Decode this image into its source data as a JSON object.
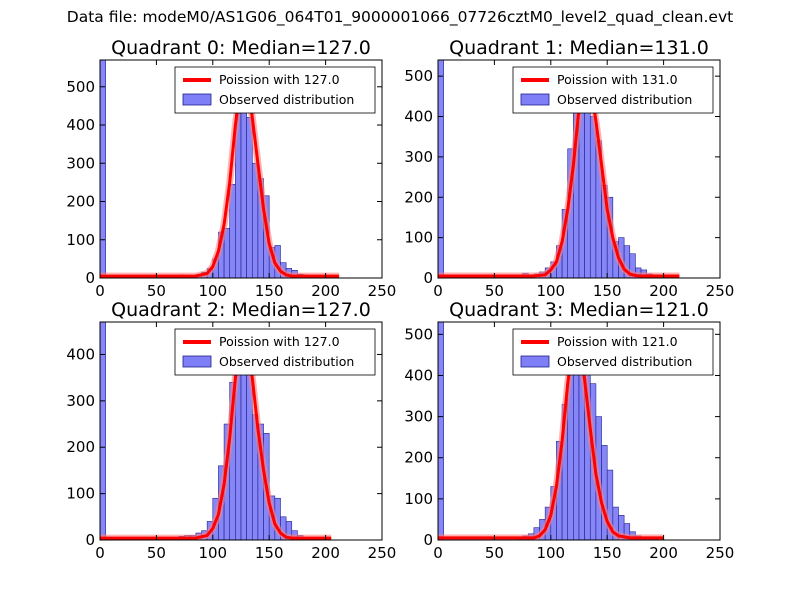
{
  "suptitle": "Data file: modeM0/AS1G06_064T01_9000001066_07726cztM0_level2_quad_clean.evt",
  "colors": {
    "hist_fill": "#7f7ff7",
    "hist_edge": "#202090",
    "poisson_line": "#ff0000",
    "poisson_glow": "#ff8080"
  },
  "chart_data": [
    {
      "type": "bar+line",
      "title": "Quadrant 0: Median=127.0",
      "xlim": [
        0,
        250
      ],
      "ylim": [
        0,
        570
      ],
      "xticks": [
        0,
        50,
        100,
        150,
        200,
        250
      ],
      "yticks": [
        0,
        100,
        200,
        300,
        400,
        500
      ],
      "legend": {
        "placement": "top-right",
        "line_label": "Poission with 127.0",
        "bar_label": "Observed distribution"
      },
      "median": 127.0,
      "bin_width": 5,
      "bins": [
        0,
        5,
        10,
        15,
        20,
        25,
        30,
        35,
        40,
        45,
        50,
        55,
        60,
        65,
        70,
        75,
        80,
        85,
        90,
        95,
        100,
        105,
        110,
        115,
        120,
        125,
        130,
        135,
        140,
        145,
        150,
        155,
        160,
        165,
        170,
        175,
        180,
        185,
        190,
        195,
        200,
        205
      ],
      "counts": [
        570,
        0,
        0,
        0,
        0,
        0,
        0,
        0,
        0,
        0,
        0,
        0,
        0,
        0,
        8,
        5,
        5,
        10,
        15,
        25,
        50,
        120,
        130,
        245,
        430,
        540,
        420,
        300,
        260,
        215,
        80,
        85,
        40,
        25,
        20,
        10,
        8,
        4,
        3,
        2,
        0,
        0
      ],
      "poisson_x": [
        0,
        50,
        70,
        85,
        95,
        100,
        105,
        110,
        115,
        120,
        125,
        127,
        130,
        135,
        140,
        145,
        150,
        155,
        160,
        165,
        170,
        180,
        190,
        200,
        212
      ],
      "poisson_y": [
        5,
        5,
        5,
        5,
        12,
        30,
        70,
        140,
        250,
        400,
        510,
        540,
        520,
        420,
        300,
        180,
        90,
        40,
        18,
        8,
        5,
        5,
        5,
        5,
        5
      ]
    },
    {
      "type": "bar+line",
      "title": "Quadrant 1: Median=131.0",
      "xlim": [
        0,
        250
      ],
      "ylim": [
        0,
        540
      ],
      "xticks": [
        0,
        50,
        100,
        150,
        200,
        250
      ],
      "yticks": [
        0,
        100,
        200,
        300,
        400,
        500
      ],
      "legend": {
        "placement": "top-right",
        "line_label": "Poission with 131.0",
        "bar_label": "Observed distribution"
      },
      "median": 131.0,
      "bin_width": 5,
      "bins": [
        0,
        5,
        10,
        15,
        20,
        25,
        30,
        35,
        40,
        45,
        50,
        55,
        60,
        65,
        70,
        75,
        80,
        85,
        90,
        95,
        100,
        105,
        110,
        115,
        120,
        125,
        130,
        135,
        140,
        145,
        150,
        155,
        160,
        165,
        170,
        175,
        180,
        185,
        190,
        195,
        200,
        205
      ],
      "counts": [
        540,
        0,
        0,
        0,
        0,
        0,
        0,
        0,
        0,
        0,
        0,
        0,
        0,
        0,
        5,
        12,
        8,
        10,
        15,
        25,
        40,
        80,
        170,
        320,
        410,
        470,
        450,
        400,
        340,
        230,
        200,
        90,
        100,
        80,
        60,
        25,
        20,
        10,
        8,
        3,
        2,
        0
      ],
      "poisson_x": [
        0,
        50,
        70,
        85,
        95,
        100,
        105,
        110,
        115,
        120,
        125,
        131,
        135,
        140,
        145,
        150,
        155,
        160,
        165,
        170,
        175,
        180,
        190,
        200,
        214
      ],
      "poisson_y": [
        5,
        5,
        5,
        5,
        8,
        20,
        40,
        90,
        170,
        280,
        420,
        510,
        480,
        390,
        280,
        170,
        100,
        50,
        22,
        10,
        6,
        5,
        5,
        5,
        5
      ]
    },
    {
      "type": "bar+line",
      "title": "Quadrant 2: Median=127.0",
      "xlim": [
        0,
        250
      ],
      "ylim": [
        0,
        470
      ],
      "xticks": [
        0,
        50,
        100,
        150,
        200,
        250
      ],
      "yticks": [
        0,
        100,
        200,
        300,
        400
      ],
      "legend": {
        "placement": "top-right",
        "line_label": "Poission with 127.0",
        "bar_label": "Observed distribution"
      },
      "median": 127.0,
      "bin_width": 5,
      "bins": [
        0,
        5,
        10,
        15,
        20,
        25,
        30,
        35,
        40,
        45,
        50,
        55,
        60,
        65,
        70,
        75,
        80,
        85,
        90,
        95,
        100,
        105,
        110,
        115,
        120,
        125,
        130,
        135,
        140,
        145,
        150,
        155,
        160,
        165,
        170,
        175,
        180,
        185,
        190,
        195,
        200,
        205
      ],
      "counts": [
        470,
        0,
        0,
        0,
        0,
        0,
        0,
        0,
        0,
        0,
        0,
        0,
        0,
        0,
        8,
        10,
        10,
        15,
        20,
        40,
        90,
        160,
        250,
        340,
        420,
        440,
        420,
        270,
        250,
        230,
        95,
        90,
        50,
        40,
        20,
        10,
        5,
        3,
        2,
        2,
        0,
        0
      ],
      "poisson_x": [
        0,
        50,
        70,
        85,
        95,
        100,
        105,
        110,
        115,
        120,
        125,
        127,
        130,
        135,
        140,
        145,
        150,
        155,
        160,
        165,
        170,
        180,
        190,
        200,
        205
      ],
      "poisson_y": [
        4,
        4,
        4,
        4,
        10,
        25,
        55,
        120,
        220,
        350,
        430,
        445,
        430,
        350,
        240,
        150,
        80,
        35,
        15,
        6,
        4,
        4,
        4,
        4,
        4
      ]
    },
    {
      "type": "bar+line",
      "title": "Quadrant 3: Median=121.0",
      "xlim": [
        0,
        250
      ],
      "ylim": [
        0,
        530
      ],
      "xticks": [
        0,
        50,
        100,
        150,
        200,
        250
      ],
      "yticks": [
        0,
        100,
        200,
        300,
        400,
        500
      ],
      "legend": {
        "placement": "top-right",
        "line_label": "Poission with 121.0",
        "bar_label": "Observed distribution"
      },
      "median": 121.0,
      "bin_width": 5,
      "bins": [
        0,
        5,
        10,
        15,
        20,
        25,
        30,
        35,
        40,
        45,
        50,
        55,
        60,
        65,
        70,
        75,
        80,
        85,
        90,
        95,
        100,
        105,
        110,
        115,
        120,
        125,
        130,
        135,
        140,
        145,
        150,
        155,
        160,
        165,
        170,
        175,
        180,
        185,
        190,
        195,
        200,
        205
      ],
      "counts": [
        530,
        0,
        0,
        0,
        0,
        0,
        0,
        0,
        0,
        0,
        0,
        0,
        0,
        0,
        5,
        10,
        15,
        30,
        50,
        80,
        130,
        240,
        330,
        460,
        480,
        500,
        430,
        380,
        300,
        230,
        170,
        80,
        60,
        40,
        20,
        10,
        5,
        3,
        2,
        0,
        0,
        0
      ],
      "poisson_x": [
        0,
        50,
        70,
        85,
        90,
        95,
        100,
        105,
        110,
        115,
        121,
        125,
        130,
        135,
        140,
        145,
        150,
        155,
        160,
        170,
        180,
        190,
        200
      ],
      "poisson_y": [
        5,
        5,
        5,
        5,
        10,
        25,
        60,
        130,
        240,
        380,
        505,
        480,
        390,
        270,
        160,
        90,
        45,
        20,
        10,
        5,
        5,
        5,
        5
      ]
    }
  ]
}
